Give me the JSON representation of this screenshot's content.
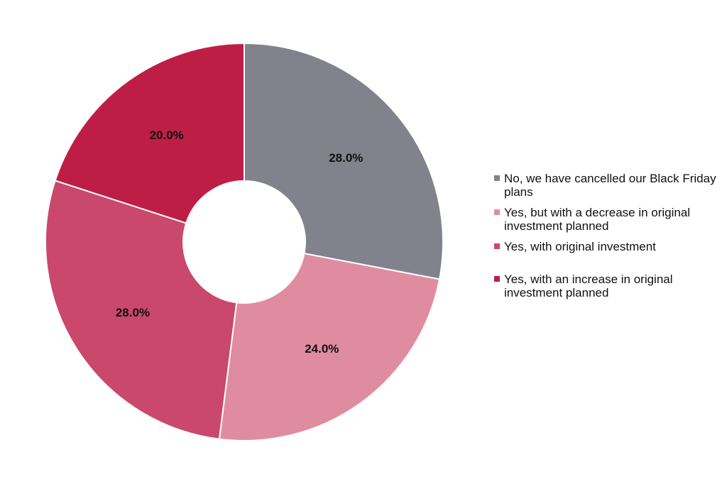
{
  "chart_data": {
    "type": "pie",
    "title": "",
    "slices": [
      {
        "label": "No, we have cancelled our Black Friday plans",
        "value": 28.0,
        "display": "28.0%",
        "color": "#82828d"
      },
      {
        "label": "Yes, but with a decrease in original investment planned",
        "value": 24.0,
        "display": "24.0%",
        "color": "#e08ca0"
      },
      {
        "label": "Yes, with original investment",
        "value": 28.0,
        "display": "28.0%",
        "color": "#c9486b"
      },
      {
        "label": "Yes, with an increase in original investment planned",
        "value": 20.0,
        "display": "20.0%",
        "color": "#be1e45"
      }
    ],
    "legend_position": "right",
    "donut": true
  }
}
